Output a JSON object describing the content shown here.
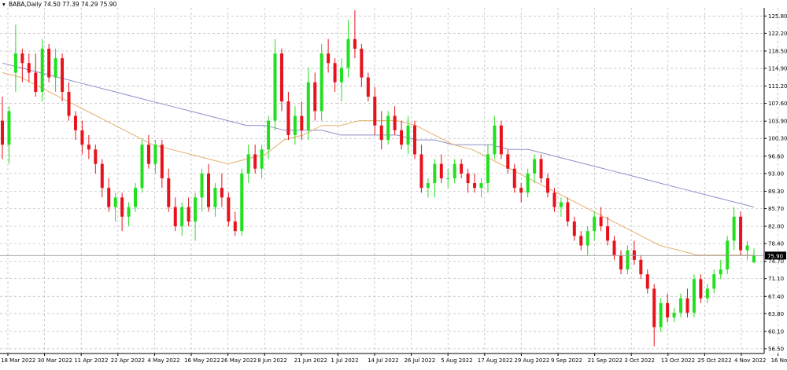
{
  "header": {
    "symbol_line": "BABA,Daily  74.50 77.39 74.29 75.90"
  },
  "colors": {
    "bull": "#22e01f",
    "bear": "#e8121d",
    "ma_slow": "#8a8fc9",
    "ma_fast": "#e3b16a",
    "grid": "#b9b9b9",
    "price_tag_bg": "#000000"
  },
  "chart_data": {
    "type": "candlestick",
    "title": "BABA,Daily",
    "ohlc_last": {
      "open": 74.5,
      "high": 77.39,
      "low": 74.29,
      "close": 75.9
    },
    "current_price": 75.9,
    "current_price_label": "75.90",
    "ylim": [
      55.5,
      127.5
    ],
    "y_ticks": [
      "125.80",
      "122.20",
      "118.50",
      "114.90",
      "111.20",
      "107.60",
      "103.90",
      "100.30",
      "96.60",
      "93.00",
      "89.30",
      "85.70",
      "82.00",
      "78.40",
      "74.70",
      "71.10",
      "67.40",
      "63.80",
      "60.10",
      "56.50"
    ],
    "x_ticks": [
      "18 Mar 2022",
      "30 Mar 2022",
      "11 Apr 2022",
      "22 Apr 2022",
      "4 May 2022",
      "16 May 2022",
      "26 May 2022",
      "8 Jun 2022",
      "21 Jun 2022",
      "1 Jul 2022",
      "14 Jul 2022",
      "26 Jul 2022",
      "5 Aug 2022",
      "17 Aug 2022",
      "29 Aug 2022",
      "9 Sep 2022",
      "21 Sep 2022",
      "3 Oct 2022",
      "13 Oct 2022",
      "25 Oct 2022",
      "4 Nov 2022",
      "16 Nov 2022"
    ],
    "candles": [
      [
        104,
        109,
        96,
        99
      ],
      [
        99,
        107,
        95,
        106
      ],
      [
        114,
        124,
        110,
        118
      ],
      [
        118,
        119,
        112,
        116
      ],
      [
        116,
        118,
        112,
        114
      ],
      [
        114,
        118,
        109,
        110
      ],
      [
        110,
        121,
        108,
        119
      ],
      [
        119,
        120,
        112,
        113
      ],
      [
        113,
        119,
        110,
        117
      ],
      [
        117,
        118,
        108,
        110
      ],
      [
        110,
        112,
        104,
        105
      ],
      [
        105,
        106,
        100,
        102
      ],
      [
        102,
        104,
        97,
        99
      ],
      [
        99,
        101,
        96,
        98
      ],
      [
        98,
        99,
        93,
        95
      ],
      [
        95,
        96,
        88,
        90
      ],
      [
        90,
        92,
        85,
        86
      ],
      [
        86,
        89,
        83,
        88
      ],
      [
        88,
        89,
        81,
        84
      ],
      [
        84,
        87,
        82,
        86
      ],
      [
        86,
        91,
        85,
        90
      ],
      [
        90,
        100,
        89,
        99
      ],
      [
        99,
        101,
        94,
        95
      ],
      [
        95,
        100,
        93,
        99
      ],
      [
        99,
        100,
        90,
        92
      ],
      [
        92,
        94,
        85,
        86
      ],
      [
        86,
        88,
        81,
        82
      ],
      [
        82,
        87,
        80,
        86
      ],
      [
        86,
        88,
        82,
        83
      ],
      [
        83,
        89,
        79,
        88
      ],
      [
        88,
        94,
        85,
        93
      ],
      [
        93,
        95,
        85,
        86
      ],
      [
        86,
        91,
        84,
        90
      ],
      [
        90,
        93,
        86,
        88
      ],
      [
        88,
        89,
        82,
        83
      ],
      [
        83,
        85,
        80,
        81
      ],
      [
        81,
        94,
        80,
        93
      ],
      [
        93,
        99,
        91,
        97
      ],
      [
        97,
        99,
        93,
        94
      ],
      [
        94,
        99,
        92,
        98
      ],
      [
        98,
        105,
        96,
        104
      ],
      [
        104,
        121,
        102,
        118
      ],
      [
        118,
        119,
        106,
        108
      ],
      [
        108,
        110,
        100,
        101
      ],
      [
        101,
        107,
        99,
        105
      ],
      [
        105,
        108,
        100,
        102
      ],
      [
        102,
        115,
        100,
        112
      ],
      [
        112,
        114,
        104,
        106
      ],
      [
        106,
        120,
        104,
        118
      ],
      [
        118,
        121,
        114,
        116
      ],
      [
        116,
        117,
        110,
        112
      ],
      [
        112,
        117,
        108,
        115
      ],
      [
        115,
        125,
        113,
        121
      ],
      [
        121,
        127,
        117,
        119
      ],
      [
        119,
        120,
        111,
        113
      ],
      [
        113,
        114,
        108,
        109
      ],
      [
        109,
        111,
        101,
        103
      ],
      [
        103,
        106,
        98,
        100
      ],
      [
        100,
        106,
        99,
        105
      ],
      [
        105,
        107,
        101,
        102
      ],
      [
        102,
        104,
        98,
        99
      ],
      [
        99,
        105,
        97,
        103
      ],
      [
        103,
        104,
        96,
        97
      ],
      [
        97,
        99,
        89,
        90
      ],
      [
        90,
        92,
        88,
        91
      ],
      [
        91,
        96,
        88,
        95
      ],
      [
        95,
        97,
        91,
        92
      ],
      [
        92,
        94,
        90,
        92
      ],
      [
        92,
        96,
        91,
        95
      ],
      [
        95,
        96,
        92,
        93
      ],
      [
        93,
        94,
        89,
        91
      ],
      [
        91,
        93,
        89,
        90
      ],
      [
        90,
        92,
        88,
        91
      ],
      [
        91,
        99,
        89,
        97
      ],
      [
        97,
        105,
        96,
        103
      ],
      [
        103,
        104,
        96,
        97
      ],
      [
        97,
        98,
        93,
        94
      ],
      [
        94,
        95,
        89,
        90
      ],
      [
        90,
        91,
        87,
        89
      ],
      [
        89,
        94,
        88,
        93
      ],
      [
        93,
        97,
        91,
        96
      ],
      [
        96,
        97,
        91,
        92
      ],
      [
        92,
        93,
        88,
        89
      ],
      [
        89,
        90,
        85,
        86
      ],
      [
        86,
        88,
        84,
        87
      ],
      [
        87,
        88,
        82,
        83
      ],
      [
        83,
        84,
        79,
        80
      ],
      [
        80,
        81,
        77,
        78
      ],
      [
        78,
        82,
        76,
        81
      ],
      [
        81,
        85,
        79,
        84
      ],
      [
        84,
        86,
        81,
        82
      ],
      [
        82,
        84,
        78,
        79
      ],
      [
        79,
        80,
        75,
        76
      ],
      [
        76,
        77,
        72,
        73
      ],
      [
        73,
        78,
        72,
        77
      ],
      [
        77,
        79,
        74,
        75
      ],
      [
        75,
        76,
        71,
        72
      ],
      [
        72,
        73,
        68,
        69
      ],
      [
        69,
        70,
        57,
        61
      ],
      [
        61,
        67,
        60,
        66
      ],
      [
        66,
        68,
        62,
        63
      ],
      [
        63,
        65,
        62,
        64
      ],
      [
        64,
        68,
        63,
        67
      ],
      [
        67,
        69,
        63,
        64
      ],
      [
        64,
        72,
        63,
        71
      ],
      [
        71,
        72,
        66,
        67
      ],
      [
        67,
        70,
        66,
        69
      ],
      [
        69,
        73,
        68,
        72
      ],
      [
        72,
        75,
        71,
        73
      ],
      [
        73,
        80,
        72,
        79
      ],
      [
        79,
        86,
        77,
        84
      ],
      [
        84,
        85,
        76,
        77
      ],
      [
        77,
        79,
        75,
        78
      ],
      [
        74.5,
        77.39,
        74.29,
        75.9
      ]
    ],
    "ma_slow_values": [
      116,
      115,
      114,
      113,
      112,
      111,
      110,
      109,
      108,
      107,
      106,
      105,
      104,
      103,
      103,
      102,
      102,
      102,
      101,
      101,
      101,
      101,
      100,
      100,
      99,
      99,
      99,
      98,
      98,
      97,
      96,
      95,
      94,
      93,
      92,
      91,
      90,
      89,
      88,
      87,
      86
    ],
    "ma_fast_values": [
      114,
      113,
      111,
      109,
      107,
      105,
      103,
      101,
      99,
      98,
      97,
      96,
      95,
      96,
      97,
      100,
      101,
      103,
      103,
      104,
      104,
      104,
      103,
      101,
      99,
      98,
      96,
      94,
      92,
      90,
      88,
      86,
      84,
      82,
      80,
      78,
      77,
      76,
      76,
      76,
      76
    ],
    "grid": true,
    "legend": "none"
  }
}
